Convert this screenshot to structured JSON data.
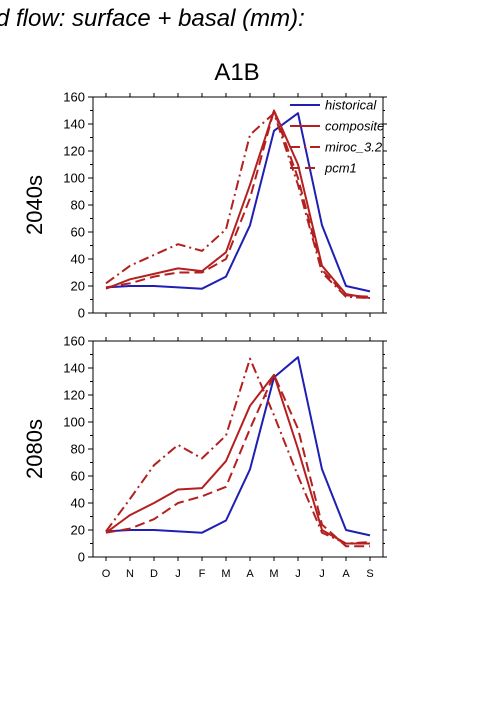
{
  "page": {
    "title": "d flow: surface + basal (mm):",
    "scenario": "A1B"
  },
  "colors": {
    "historical": "#1f1fb4",
    "scenario": "#b41f1f"
  },
  "chart_data": [
    {
      "type": "line",
      "title": "A1B",
      "ylabel": "2040s",
      "categories": [
        "O",
        "N",
        "D",
        "J",
        "F",
        "M",
        "A",
        "M",
        "J",
        "J",
        "A",
        "S"
      ],
      "ylim": [
        0,
        160
      ],
      "yticks": [
        0,
        20,
        40,
        60,
        80,
        100,
        120,
        140,
        160
      ],
      "legend": "top-right",
      "grid": false,
      "series": [
        {
          "name": "historical",
          "style": "solid",
          "color": "#1f1fb4",
          "values": [
            19,
            20,
            20,
            19,
            18,
            27,
            65,
            135,
            148,
            65,
            20,
            16
          ]
        },
        {
          "name": "composite",
          "style": "solid",
          "color": "#b41f1f",
          "values": [
            18,
            25,
            29,
            33,
            31,
            45,
            95,
            150,
            110,
            35,
            14,
            11
          ]
        },
        {
          "name": "miroc_3.2",
          "style": "dashdot",
          "color": "#b41f1f",
          "values": [
            22,
            35,
            43,
            51,
            46,
            62,
            132,
            148,
            95,
            30,
            12,
            11
          ]
        },
        {
          "name": "pcm1",
          "style": "dash",
          "color": "#b41f1f",
          "values": [
            19,
            22,
            27,
            30,
            30,
            40,
            85,
            150,
            100,
            32,
            13,
            12
          ]
        }
      ]
    },
    {
      "type": "line",
      "title": "",
      "ylabel": "2080s",
      "categories": [
        "O",
        "N",
        "D",
        "J",
        "F",
        "M",
        "A",
        "M",
        "J",
        "J",
        "A",
        "S"
      ],
      "ylim": [
        0,
        160
      ],
      "yticks": [
        0,
        20,
        40,
        60,
        80,
        100,
        120,
        140,
        160
      ],
      "grid": false,
      "series": [
        {
          "name": "historical",
          "style": "solid",
          "color": "#1f1fb4",
          "values": [
            19,
            20,
            20,
            19,
            18,
            27,
            65,
            133,
            148,
            65,
            20,
            16
          ]
        },
        {
          "name": "composite",
          "style": "solid",
          "color": "#b41f1f",
          "values": [
            18,
            31,
            40,
            50,
            51,
            71,
            112,
            135,
            80,
            20,
            10,
            10
          ]
        },
        {
          "name": "miroc_3.2",
          "style": "dashdot",
          "color": "#b41f1f",
          "values": [
            19,
            43,
            68,
            83,
            73,
            90,
            147,
            105,
            60,
            18,
            10,
            11
          ]
        },
        {
          "name": "pcm1",
          "style": "dash",
          "color": "#b41f1f",
          "values": [
            18,
            21,
            28,
            40,
            45,
            52,
            95,
            135,
            95,
            24,
            8,
            8
          ]
        }
      ]
    }
  ]
}
